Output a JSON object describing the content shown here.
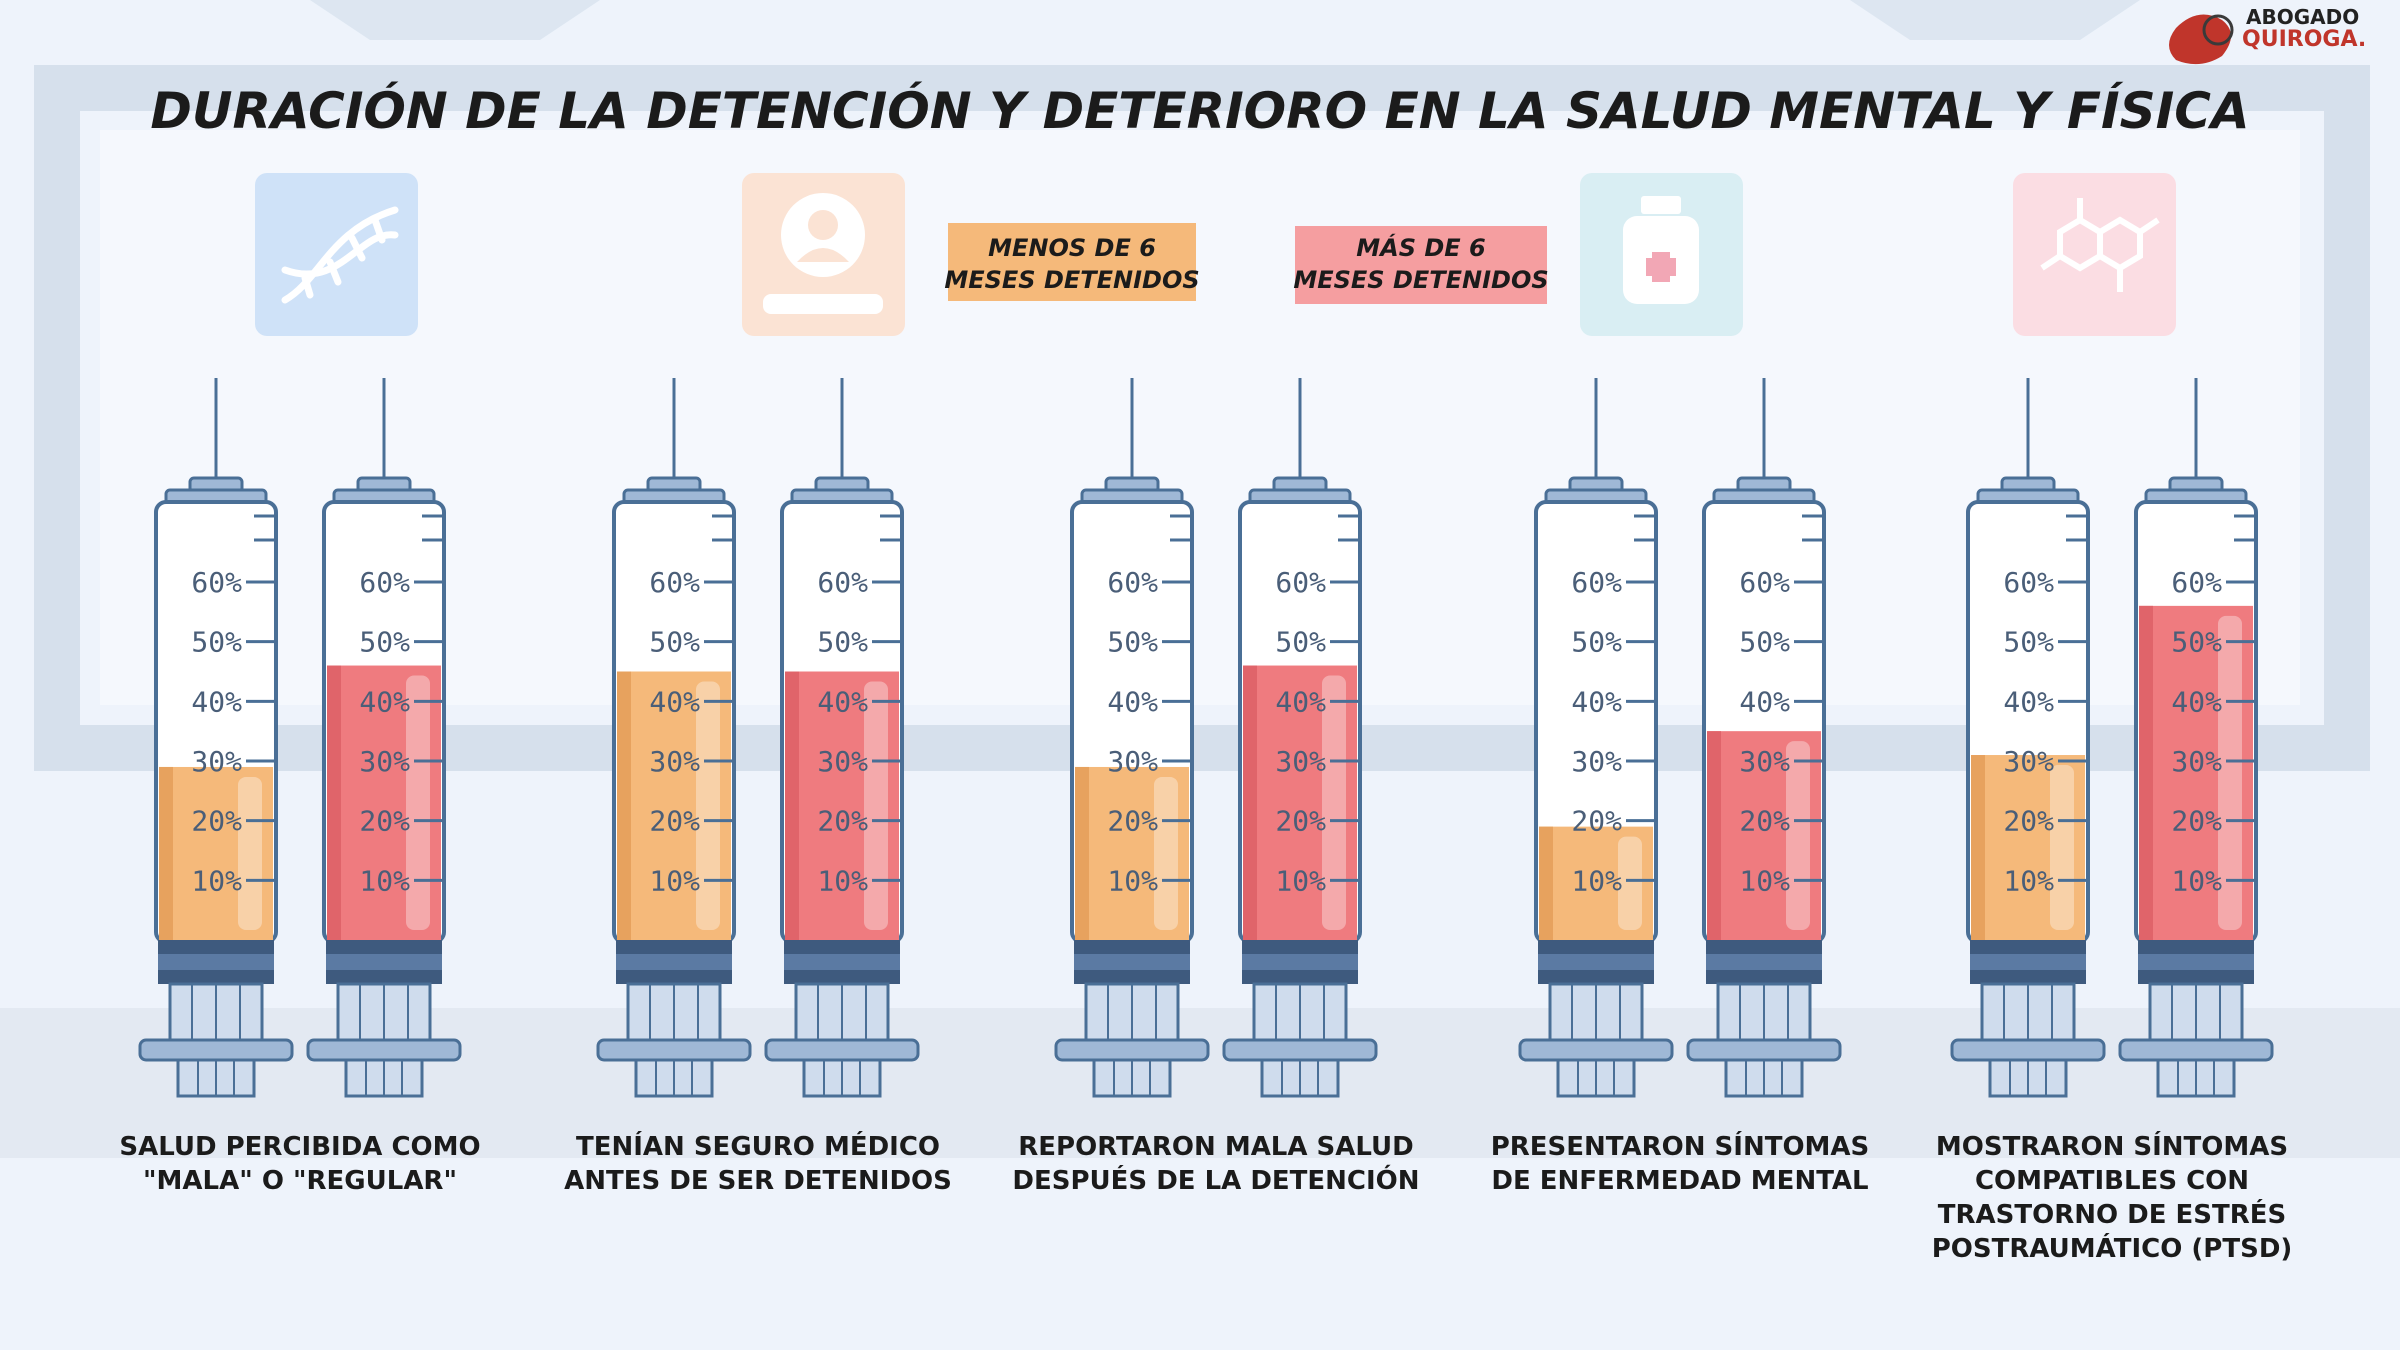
{
  "header": {
    "title": "DURACIÓN DE LA DETENCIÓN Y DETERIORO EN LA SALUD MENTAL Y FÍSICA"
  },
  "brand": {
    "line1": "ABOGADO",
    "line2": "QUIROGA."
  },
  "colors": {
    "less": "#f5b97a",
    "less_dark": "#e7a25e",
    "more": "#ef7b7f",
    "more_dark": "#e0646a",
    "barrel_line": "#4a6f96",
    "dark_band": "#3e5a7e",
    "plunger": "#9fb8d6",
    "bg": "#eef3fb"
  },
  "chart_data": {
    "type": "bar",
    "title": "DURACIÓN DE LA DETENCIÓN Y DETERIORO EN LA SALUD MENTAL Y FÍSICA",
    "ylim": [
      0,
      60
    ],
    "yticks": [
      "10%",
      "20%",
      "30%",
      "40%",
      "50%",
      "60%"
    ],
    "legend": [
      {
        "key": "less",
        "line1": "MENOS DE 6",
        "line2": "MESES DETENIDOS"
      },
      {
        "key": "more",
        "line1": "MÁS DE 6",
        "line2": "MESES DETENIDOS"
      }
    ],
    "series": [
      {
        "name": "Menos de 6 meses detenidos",
        "values": [
          29,
          45,
          29,
          19,
          31
        ]
      },
      {
        "name": "Más de 6 meses detenidos",
        "values": [
          46,
          45,
          46,
          35,
          56
        ]
      }
    ],
    "categories": [
      {
        "lines": [
          "SALUD PERCIBIDA COMO",
          "\"MALA\" O \"REGULAR\""
        ]
      },
      {
        "lines": [
          "TENÍAN SEGURO MÉDICO",
          "ANTES DE SER DETENIDOS"
        ]
      },
      {
        "lines": [
          "REPORTARON MALA SALUD",
          "DESPUÉS DE LA DETENCIÓN"
        ]
      },
      {
        "lines": [
          "PRESENTARON SÍNTOMAS",
          "DE ENFERMEDAD MENTAL"
        ]
      },
      {
        "lines": [
          "MOSTRARON SÍNTOMAS",
          "COMPATIBLES CON",
          "TRASTORNO DE ESTRÉS",
          "POSTRAUMÁTICO (PTSD)"
        ]
      }
    ],
    "icons": [
      {
        "name": "dna-icon",
        "color": "#cfe2f8"
      },
      {
        "name": "user-profile-icon",
        "color": "#fbe3d4"
      },
      {
        "name": "medicine-bottle-icon",
        "color": "#d9eef3"
      },
      {
        "name": "molecule-icon",
        "color": "#fbdde3"
      }
    ]
  }
}
